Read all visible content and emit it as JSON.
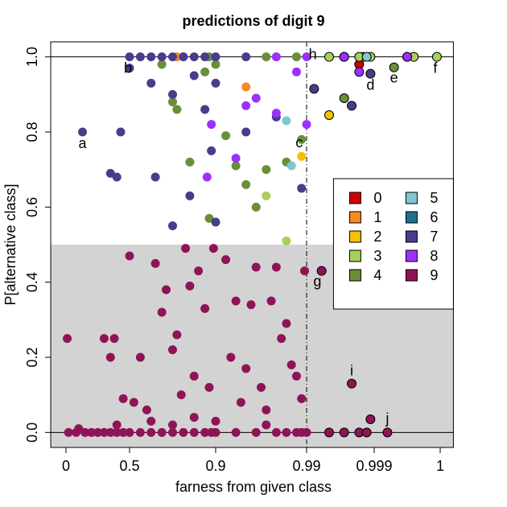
{
  "chart_data": {
    "type": "scatter",
    "title": "predictions of digit 9",
    "x_label": "farness from given class",
    "y_label": "P[alternative class]",
    "xlim": [
      -0.12,
      1.0002
    ],
    "ylim": [
      -0.04,
      1.04
    ],
    "xticks": [
      0,
      0.5,
      0.9,
      0.99,
      0.999,
      1
    ],
    "yticks": [
      {
        "value": 0,
        "label": "0.0"
      },
      0.2,
      0.4,
      0.6,
      0.8,
      {
        "value": 1,
        "label": "1.0"
      }
    ],
    "shade_below": 0.5,
    "shade_color": "#d3d3d3",
    "hlines": [
      0,
      1
    ],
    "vline": 0.99,
    "legend": "right",
    "series": [
      {
        "name": "0",
        "color": "#cc0000",
        "x": [
          0.997
        ],
        "values": [
          0.98
        ]
      },
      {
        "name": "1",
        "color": "#f58a1f",
        "x": [
          0.72,
          0.93
        ],
        "values": [
          1,
          0.92
        ]
      },
      {
        "name": "2",
        "color": "#f2c200",
        "x": [
          0.985,
          0.993,
          0.9975,
          0.9995
        ],
        "values": [
          0.735,
          0.845,
          1,
          1
        ]
      },
      {
        "name": "3",
        "color": "#a8d05a",
        "x": [
          0.95,
          0.97,
          0.96,
          0.98,
          0.993,
          0.997,
          0.9985,
          0.9996,
          0.99995
        ],
        "values": [
          0.63,
          0.51,
          1,
          1,
          1,
          1,
          1,
          1,
          1
        ]
      },
      {
        "name": "4",
        "color": "#6b8e3a",
        "x": [
          0.65,
          0.7,
          0.72,
          0.78,
          0.85,
          0.87,
          0.9,
          0.91,
          0.92,
          0.93,
          0.94,
          0.95,
          0.97,
          0.985,
          0.995,
          0.9993,
          0.75,
          0.87,
          0.95,
          0.98
        ],
        "values": [
          0.98,
          0.88,
          0.86,
          0.72,
          0.96,
          0.57,
          0.98,
          0.79,
          0.71,
          0.66,
          0.6,
          0.7,
          0.72,
          0.78,
          0.89,
          0.972,
          1,
          1,
          1,
          1
        ]
      },
      {
        "name": "5",
        "color": "#7fc8d0",
        "x": [
          0.97,
          0.975,
          0.998
        ],
        "values": [
          0.83,
          0.71,
          1
        ]
      },
      {
        "name": "6",
        "color": "#1f6e8c",
        "x": [
          0.995
        ],
        "values": [
          1
        ]
      },
      {
        "name": "7",
        "color": "#483d8b",
        "x": [
          0.13,
          0.43,
          0.35,
          0.4,
          0.62,
          0.7,
          0.78,
          0.85,
          0.88,
          0.9,
          0.93,
          0.96,
          0.985,
          0.991,
          0.996,
          0.9985,
          0.5,
          0.55,
          0.6,
          0.65,
          0.7,
          0.75,
          0.8,
          0.85,
          0.9,
          0.93,
          0.5,
          0.6,
          0.7,
          0.8,
          0.9
        ],
        "values": [
          0.8,
          0.8,
          0.69,
          0.68,
          0.68,
          0.55,
          0.63,
          0.86,
          0.75,
          0.56,
          0.8,
          0.84,
          0.65,
          0.915,
          0.87,
          0.955,
          1,
          1,
          1,
          1,
          1,
          1,
          1,
          1,
          1,
          1,
          0.97,
          0.93,
          0.9,
          0.95,
          0.93
        ]
      },
      {
        "name": "8",
        "color": "#9b30ff",
        "x": [
          0.86,
          0.88,
          0.93,
          0.96,
          0.98,
          0.99,
          0.997,
          0.94,
          0.92,
          0.96,
          0.99,
          0.995,
          0.9995
        ],
        "values": [
          0.68,
          0.82,
          0.87,
          0.85,
          0.96,
          0.82,
          0.96,
          0.89,
          0.73,
          1,
          1,
          1,
          1
        ]
      },
      {
        "name": "9",
        "color": "#8e1457",
        "x": [
          0.01,
          0.3,
          0.35,
          0.38,
          0.45,
          0.5,
          0.52,
          0.55,
          0.58,
          0.62,
          0.65,
          0.67,
          0.7,
          0.72,
          0.74,
          0.76,
          0.78,
          0.8,
          0.82,
          0.85,
          0.87,
          0.89,
          0.91,
          0.915,
          0.92,
          0.925,
          0.93,
          0.935,
          0.94,
          0.945,
          0.95,
          0.955,
          0.96,
          0.965,
          0.97,
          0.975,
          0.98,
          0.985,
          0.988,
          0.992,
          0.996,
          0.9985,
          0.9992,
          0.02,
          0.08,
          0.15,
          0.2,
          0.25,
          0.3,
          0.35,
          0.4,
          0.45,
          0.5,
          0.55,
          0.6,
          0.65,
          0.7,
          0.75,
          0.8,
          0.85,
          0.88,
          0.9,
          0.92,
          0.94,
          0.96,
          0.97,
          0.98,
          0.985,
          0.99,
          0.993,
          0.995,
          0.997,
          0.998,
          0.1,
          0.4,
          0.6,
          0.7,
          0.8,
          0.9,
          0.95
        ],
        "values": [
          0.25,
          0.25,
          0.2,
          0.25,
          0.09,
          0.47,
          0.08,
          0.2,
          0.06,
          0.45,
          0.32,
          0.38,
          0.22,
          0.26,
          0.1,
          0.49,
          0.39,
          0.15,
          0.43,
          0.33,
          0.12,
          0.49,
          0.46,
          0.2,
          0.35,
          0.08,
          0.17,
          0.34,
          0.44,
          0.12,
          0.06,
          0.35,
          0.44,
          0.25,
          0.29,
          0.18,
          0.15,
          0.09,
          0.43,
          0.43,
          0.13,
          0.035,
          0,
          0,
          0,
          0,
          0,
          0,
          0,
          0,
          0,
          0,
          0,
          0,
          0,
          0,
          0,
          0,
          0,
          0,
          0,
          0,
          0,
          0,
          0,
          0,
          0,
          0,
          0,
          0,
          0,
          0,
          0,
          0.01,
          0.02,
          0.03,
          0.02,
          0.04,
          0.03,
          0.02
        ]
      }
    ],
    "annotations": [
      {
        "text": "a",
        "x": 0.13,
        "y": 0.8
      },
      {
        "text": "b",
        "x": 0.5,
        "y": 1
      },
      {
        "text": "c",
        "x": 0.985,
        "y": 0.8
      },
      {
        "text": "d",
        "x": 0.9985,
        "y": 0.955
      },
      {
        "text": "e",
        "x": 0.9993,
        "y": 0.972
      },
      {
        "text": "f",
        "x": 0.99995,
        "y": 1
      },
      {
        "text": "g",
        "x": 0.991,
        "y": 0.43
      },
      {
        "text": "h",
        "x": 0.9905,
        "y": 1
      },
      {
        "text": "i",
        "x": 0.996,
        "y": 0.13
      },
      {
        "text": "j",
        "x": 0.9992,
        "y": 0
      }
    ]
  }
}
